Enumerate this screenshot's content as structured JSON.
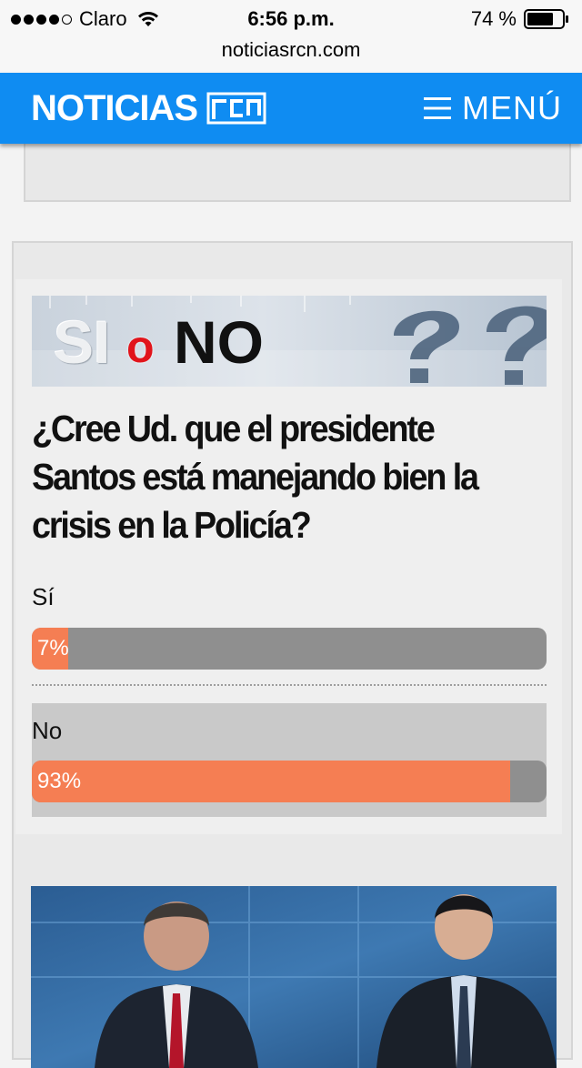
{
  "status_bar": {
    "carrier": "Claro",
    "time": "6:56 p.m.",
    "battery": "74 %",
    "url": "noticiasrcn.com"
  },
  "header": {
    "logo_text": "NOTICIAS",
    "menu_label": "MENÚ",
    "brand_color": "#0f8cf2"
  },
  "poll": {
    "banner": {
      "si": "SI",
      "o": "o",
      "no": "NO"
    },
    "question": "¿Cree Ud. que el presidente Santos está manejando bien la crisis en la Policía?",
    "options": [
      {
        "label": "Sí",
        "percent_text": "7%",
        "percent": 7
      },
      {
        "label": "No",
        "percent_text": "93%",
        "percent": 93
      }
    ],
    "bar_fill_color": "#f57e53",
    "bar_track_color": "#8f8f8f"
  }
}
